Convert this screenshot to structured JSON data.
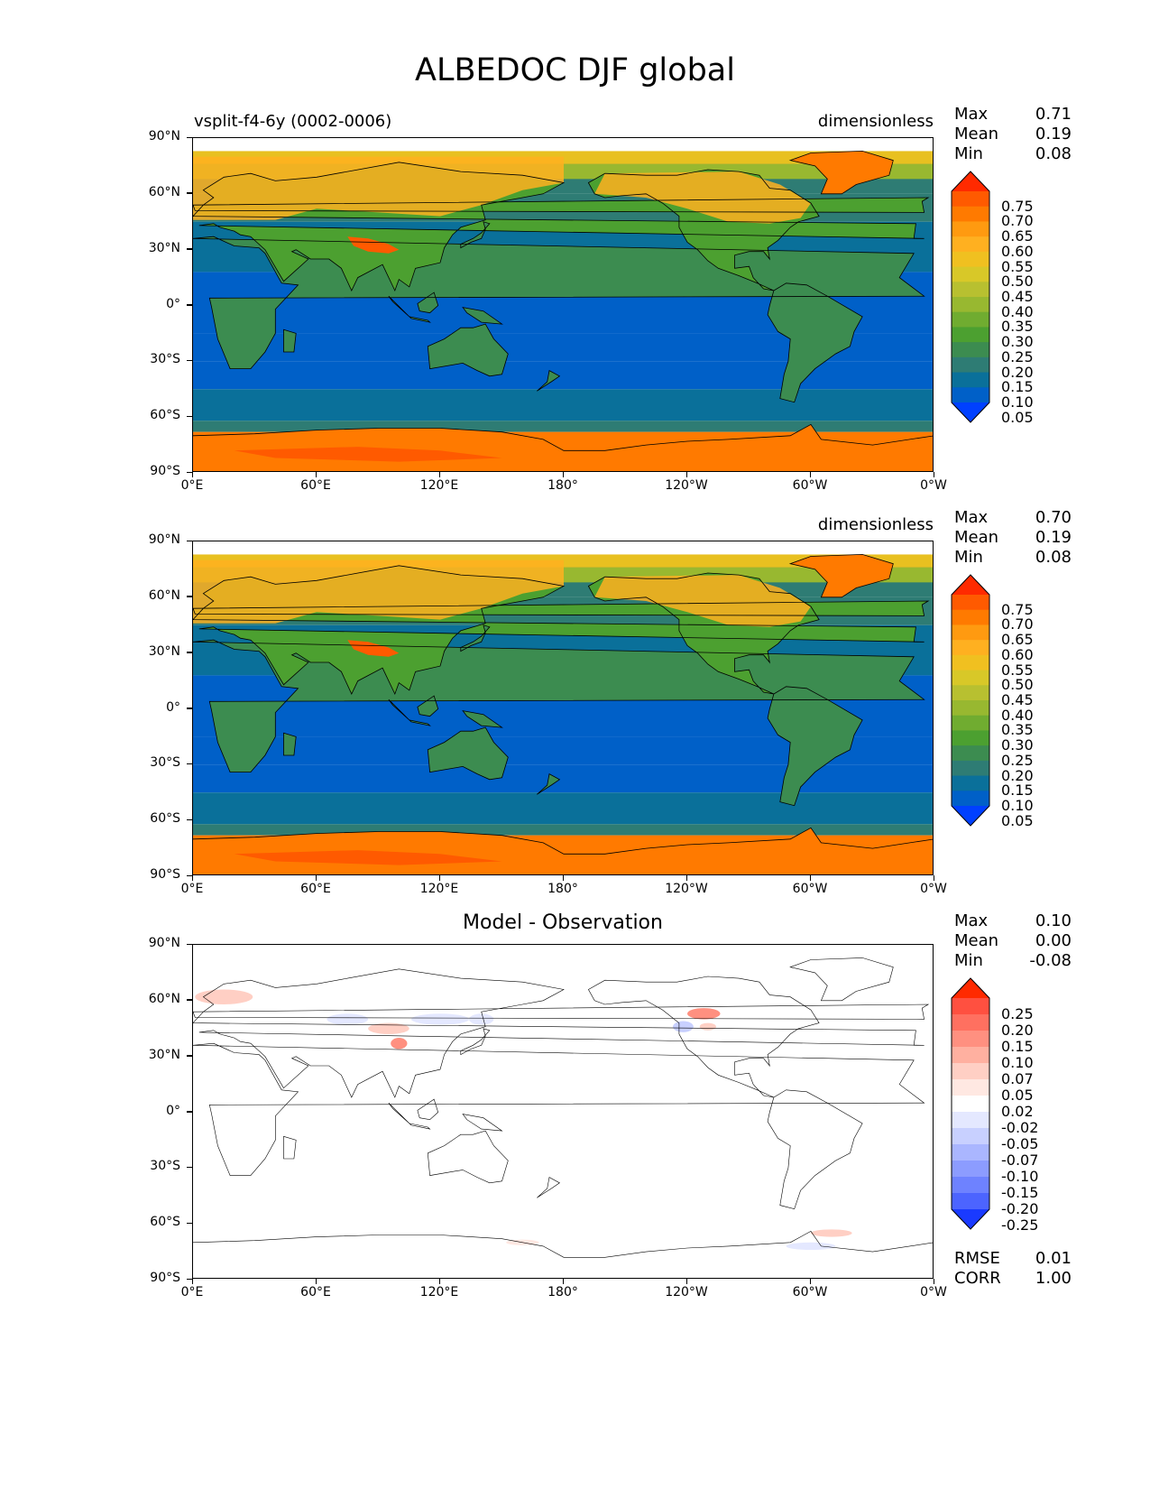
{
  "title": "ALBEDOC DJF global",
  "lat_labels": [
    "90°N",
    "60°N",
    "30°N",
    "0°",
    "30°S",
    "60°S",
    "90°S"
  ],
  "lon_labels": [
    "0°E",
    "60°E",
    "120°E",
    "180°",
    "120°W",
    "60°W",
    "0°W"
  ],
  "panels": [
    {
      "left_subtitle": "vsplit-f4-6y (0002-0006)",
      "right_subtitle": "dimensionless",
      "center_subtitle": "",
      "stats": {
        "max_label": "Max",
        "max": "0.71",
        "mean_label": "Mean",
        "mean": "0.19",
        "min_label": "Min",
        "min": "0.08"
      },
      "colorbar_labels": [
        "0.75",
        "0.70",
        "0.65",
        "0.60",
        "0.55",
        "0.50",
        "0.45",
        "0.40",
        "0.35",
        "0.30",
        "0.25",
        "0.20",
        "0.15",
        "0.10",
        "0.05"
      ],
      "colorbar_colors": [
        "#ff2a00",
        "#ff5a00",
        "#ff7a00",
        "#ff9a10",
        "#ffb020",
        "#f0c020",
        "#d8c828",
        "#b8c030",
        "#98b830",
        "#70ac30",
        "#4ca030",
        "#3c8c50",
        "#2e7c74",
        "#0a709a",
        "#0060c8",
        "#0040ff"
      ]
    },
    {
      "left_subtitle": "",
      "right_subtitle": "dimensionless",
      "center_subtitle": "",
      "stats": {
        "max_label": "Max",
        "max": "0.70",
        "mean_label": "Mean",
        "mean": "0.19",
        "min_label": "Min",
        "min": "0.08"
      },
      "colorbar_labels": [
        "0.75",
        "0.70",
        "0.65",
        "0.60",
        "0.55",
        "0.50",
        "0.45",
        "0.40",
        "0.35",
        "0.30",
        "0.25",
        "0.20",
        "0.15",
        "0.10",
        "0.05"
      ],
      "colorbar_colors": [
        "#ff2a00",
        "#ff5a00",
        "#ff7a00",
        "#ff9a10",
        "#ffb020",
        "#f0c020",
        "#d8c828",
        "#b8c030",
        "#98b830",
        "#70ac30",
        "#4ca030",
        "#3c8c50",
        "#2e7c74",
        "#0a709a",
        "#0060c8",
        "#0040ff"
      ]
    },
    {
      "left_subtitle": "",
      "right_subtitle": "",
      "center_subtitle": "Model - Observation",
      "stats": {
        "max_label": "Max",
        "max": "0.10",
        "mean_label": "Mean",
        "mean": "0.00",
        "min_label": "Min",
        "min": "-0.08"
      },
      "colorbar_labels": [
        "0.25",
        "0.20",
        "0.15",
        "0.10",
        "0.07",
        "0.05",
        "0.02",
        "-0.02",
        "-0.05",
        "-0.07",
        "-0.10",
        "-0.15",
        "-0.20",
        "-0.25"
      ],
      "colorbar_colors": [
        "#ff2a00",
        "#ff5040",
        "#ff7060",
        "#ff9080",
        "#ffb0a0",
        "#ffcfc4",
        "#ffe8e2",
        "#ffffff",
        "#e4e8ff",
        "#c8d0ff",
        "#aab6ff",
        "#8c9cff",
        "#6e82ff",
        "#4c64ff",
        "#1a3aff"
      ],
      "rmse_label": "RMSE",
      "rmse": "0.01",
      "corr_label": "CORR",
      "corr": "1.00"
    }
  ]
}
